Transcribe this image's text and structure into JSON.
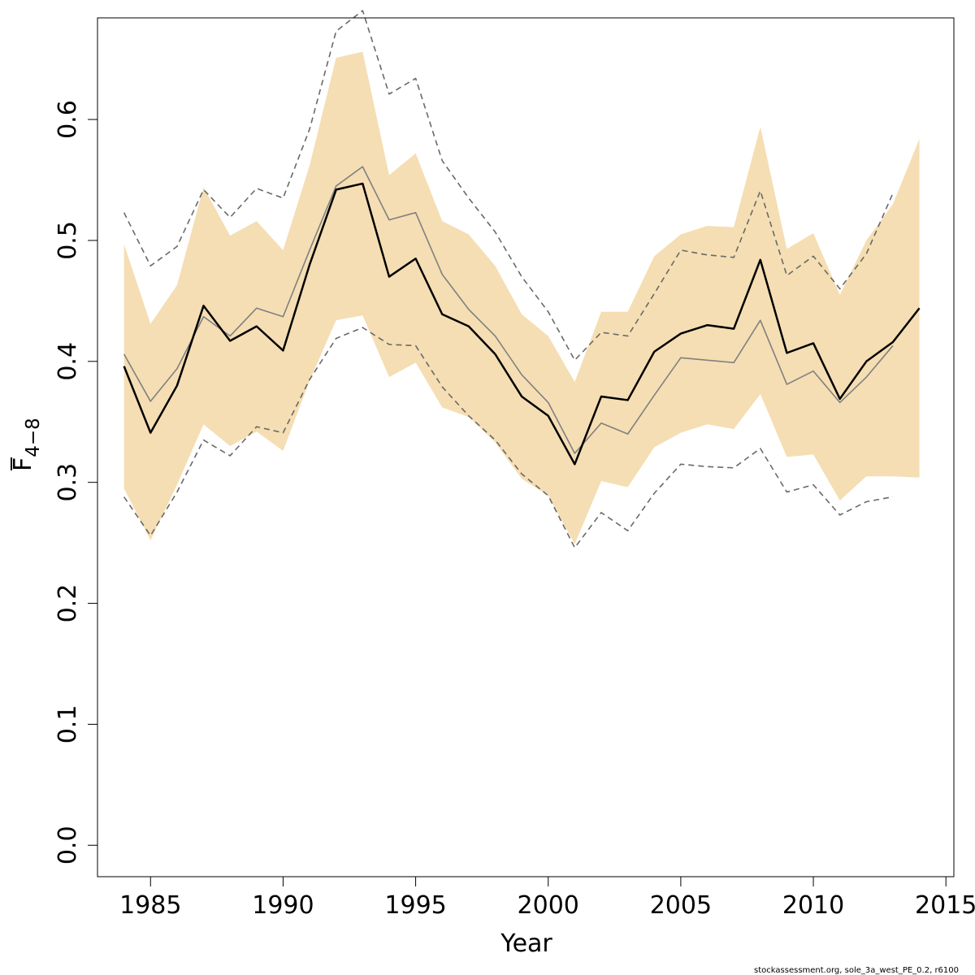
{
  "chart_data": {
    "type": "line",
    "xlabel": "Year",
    "ylabel": "F",
    "ylabel_subscript": "4−8",
    "xlim": [
      1983,
      2015.3
    ],
    "ylim": [
      -0.026,
      0.684
    ],
    "x_ticks": [
      1985,
      1990,
      1995,
      2000,
      2005,
      2010,
      2015
    ],
    "y_ticks": [
      0.0,
      0.1,
      0.2,
      0.3,
      0.4,
      0.5,
      0.6
    ],
    "y_tick_labels": [
      "0.0",
      "0.1",
      "0.2",
      "0.3",
      "0.4",
      "0.5",
      "0.6"
    ],
    "grid": false,
    "colors": {
      "band": "#f5deb3",
      "main": "#000000",
      "gray": "#808080",
      "dashed": "#696969"
    },
    "band": {
      "x": [
        1984,
        1985,
        1986,
        1987,
        1988,
        1989,
        1990,
        1991,
        1992,
        1993,
        1994,
        1995,
        1996,
        1997,
        1998,
        1999,
        2000,
        2001,
        2002,
        2003,
        2004,
        2005,
        2006,
        2007,
        2008,
        2009,
        2010,
        2011,
        2012,
        2013,
        2014
      ],
      "lower": [
        0.295,
        0.252,
        0.298,
        0.348,
        0.33,
        0.342,
        0.326,
        0.384,
        0.434,
        0.438,
        0.387,
        0.399,
        0.362,
        0.354,
        0.333,
        0.303,
        0.289,
        0.249,
        0.301,
        0.296,
        0.329,
        0.341,
        0.348,
        0.344,
        0.373,
        0.321,
        0.323,
        0.285,
        0.305,
        0.305,
        0.304
      ],
      "upper": [
        0.497,
        0.431,
        0.463,
        0.544,
        0.504,
        0.516,
        0.492,
        0.562,
        0.651,
        0.656,
        0.554,
        0.572,
        0.516,
        0.505,
        0.479,
        0.439,
        0.421,
        0.383,
        0.441,
        0.441,
        0.487,
        0.505,
        0.512,
        0.511,
        0.594,
        0.493,
        0.506,
        0.455,
        0.5,
        0.53,
        0.584
      ]
    },
    "series": [
      {
        "style": "solid-thick",
        "x": [
          1984,
          1985,
          1986,
          1987,
          1988,
          1989,
          1990,
          1991,
          1992,
          1993,
          1994,
          1995,
          1996,
          1997,
          1998,
          1999,
          2000,
          2001,
          2002,
          2003,
          2004,
          2005,
          2006,
          2007,
          2008,
          2009,
          2010,
          2011,
          2012,
          2013,
          2014
        ],
        "values": [
          0.396,
          0.341,
          0.38,
          0.446,
          0.417,
          0.429,
          0.409,
          0.48,
          0.542,
          0.547,
          0.47,
          0.485,
          0.439,
          0.429,
          0.406,
          0.371,
          0.355,
          0.315,
          0.371,
          0.368,
          0.408,
          0.423,
          0.43,
          0.427,
          0.484,
          0.407,
          0.415,
          0.369,
          0.4,
          0.416,
          0.444
        ]
      },
      {
        "style": "solid-thin",
        "x": [
          1984,
          1985,
          1986,
          1987,
          1988,
          1989,
          1990,
          1991,
          1992,
          1993,
          1994,
          1995,
          1996,
          1997,
          1998,
          1999,
          2000,
          2001,
          2002,
          2003,
          2004,
          2005,
          2006,
          2007,
          2008,
          2009,
          2010,
          2011,
          2012,
          2013
        ],
        "values": [
          0.406,
          0.367,
          0.394,
          0.437,
          0.421,
          0.444,
          0.437,
          0.492,
          0.545,
          0.561,
          0.517,
          0.523,
          0.472,
          0.443,
          0.421,
          0.389,
          0.366,
          0.324,
          0.349,
          0.34,
          0.372,
          0.403,
          0.401,
          0.399,
          0.434,
          0.381,
          0.392,
          0.366,
          0.387,
          0.413
        ]
      },
      {
        "style": "dashed",
        "x": [
          1984,
          1985,
          1986,
          1987,
          1988,
          1989,
          1990,
          1991,
          1992,
          1993,
          1994,
          1995,
          1996,
          1997,
          1998,
          1999,
          2000,
          2001,
          2002,
          2003,
          2004,
          2005,
          2006,
          2007,
          2008,
          2009,
          2010,
          2011,
          2012,
          2013
        ],
        "values": [
          0.523,
          0.479,
          0.495,
          0.542,
          0.519,
          0.543,
          0.535,
          0.592,
          0.673,
          0.69,
          0.621,
          0.634,
          0.566,
          0.535,
          0.507,
          0.47,
          0.441,
          0.401,
          0.424,
          0.421,
          0.456,
          0.492,
          0.488,
          0.486,
          0.541,
          0.471,
          0.487,
          0.46,
          0.489,
          0.539
        ]
      },
      {
        "style": "dashed",
        "x": [
          1984,
          1985,
          1986,
          1987,
          1988,
          1989,
          1990,
          1991,
          1992,
          1993,
          1994,
          1995,
          1996,
          1997,
          1998,
          1999,
          2000,
          2001,
          2002,
          2003,
          2004,
          2005,
          2006,
          2007,
          2008,
          2009,
          2010,
          2011,
          2012,
          2013
        ],
        "values": [
          0.288,
          0.256,
          0.292,
          0.335,
          0.322,
          0.346,
          0.341,
          0.385,
          0.419,
          0.428,
          0.414,
          0.413,
          0.379,
          0.355,
          0.335,
          0.307,
          0.289,
          0.246,
          0.275,
          0.26,
          0.291,
          0.315,
          0.313,
          0.312,
          0.328,
          0.292,
          0.298,
          0.273,
          0.284,
          0.288
        ]
      }
    ]
  },
  "footer_text": "stockassessment.org, sole_3a_west_PE_0.2, r6100"
}
